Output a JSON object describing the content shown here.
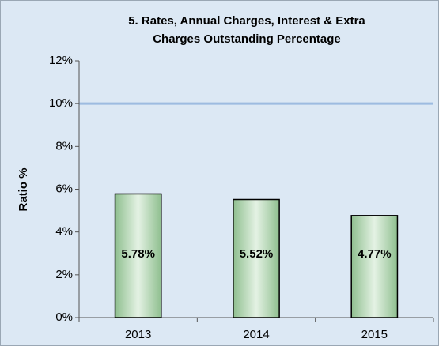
{
  "chart_data": {
    "type": "bar",
    "title": [
      "5. Rates, Annual Charges, Interest & Extra",
      "Charges Outstanding Percentage"
    ],
    "y_label": "Ratio %",
    "categories": [
      "2013",
      "2014",
      "2015"
    ],
    "values": [
      5.78,
      5.52,
      4.77
    ],
    "value_labels": [
      "5.78%",
      "5.52%",
      "4.77%"
    ],
    "color": "#b5d6b5",
    "reference_line": 10,
    "reference_color": "#9dbbe0",
    "ylim": [
      0,
      12
    ],
    "yticks": [
      {
        "value": 0,
        "label": "0%"
      },
      {
        "value": 2,
        "label": "2%"
      },
      {
        "value": 4,
        "label": "4%"
      },
      {
        "value": 6,
        "label": "6%"
      },
      {
        "value": 8,
        "label": "8%"
      },
      {
        "value": 10,
        "label": "10%"
      },
      {
        "value": 12,
        "label": "12%"
      }
    ],
    "grid": false
  }
}
